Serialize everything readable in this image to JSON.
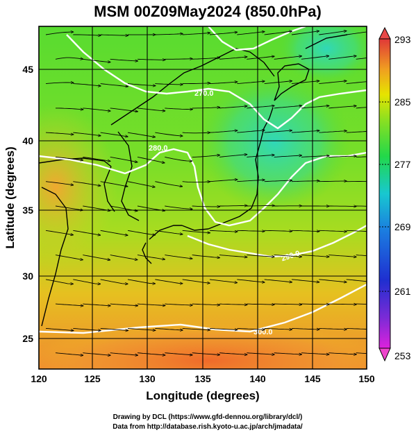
{
  "title": "MSM 00Z09May2024 (850.0hPa)",
  "x_axis": {
    "label": "Longitude (degrees)",
    "ticks": [
      "120",
      "125",
      "130",
      "135",
      "140",
      "145",
      "150"
    ],
    "range": [
      120,
      150
    ]
  },
  "y_axis": {
    "label": "Latitude  (degrees)",
    "ticks": [
      "25",
      "30",
      "35",
      "40",
      "45"
    ],
    "range": [
      22.4,
      47.6
    ]
  },
  "colorbar": {
    "ticks": [
      "293",
      "285",
      "277",
      "269",
      "261",
      "253"
    ],
    "range": [
      253,
      293
    ],
    "colors": [
      "#dd22dd",
      "#7a2bd6",
      "#1f2fd0",
      "#1b7de0",
      "#18c8d0",
      "#22d84a",
      "#8de020",
      "#e6e400",
      "#f0a020",
      "#f05a2a",
      "#e03838"
    ]
  },
  "contour_labels": [
    "300.0",
    "290.0",
    "280.0",
    "270.0"
  ],
  "credits": {
    "line1": "Drawing by DCL (https://www.gfd-dennou.org/library/dcl/)",
    "line2": "Data from http://database.rish.kyoto-u.ac.jp/arch/jmadata/"
  },
  "chart_data": {
    "type": "heatmap",
    "title": "MSM 00Z09May2024 (850.0hPa)",
    "xlabel": "Longitude (degrees)",
    "ylabel": "Latitude  (degrees)",
    "xlim": [
      120,
      150
    ],
    "ylim": [
      22.4,
      47.6
    ],
    "zlim": [
      253,
      293
    ],
    "contour_levels": [
      300.0,
      290.0,
      280.0,
      270.0
    ],
    "grid": true,
    "overlay": "streamlines"
  }
}
